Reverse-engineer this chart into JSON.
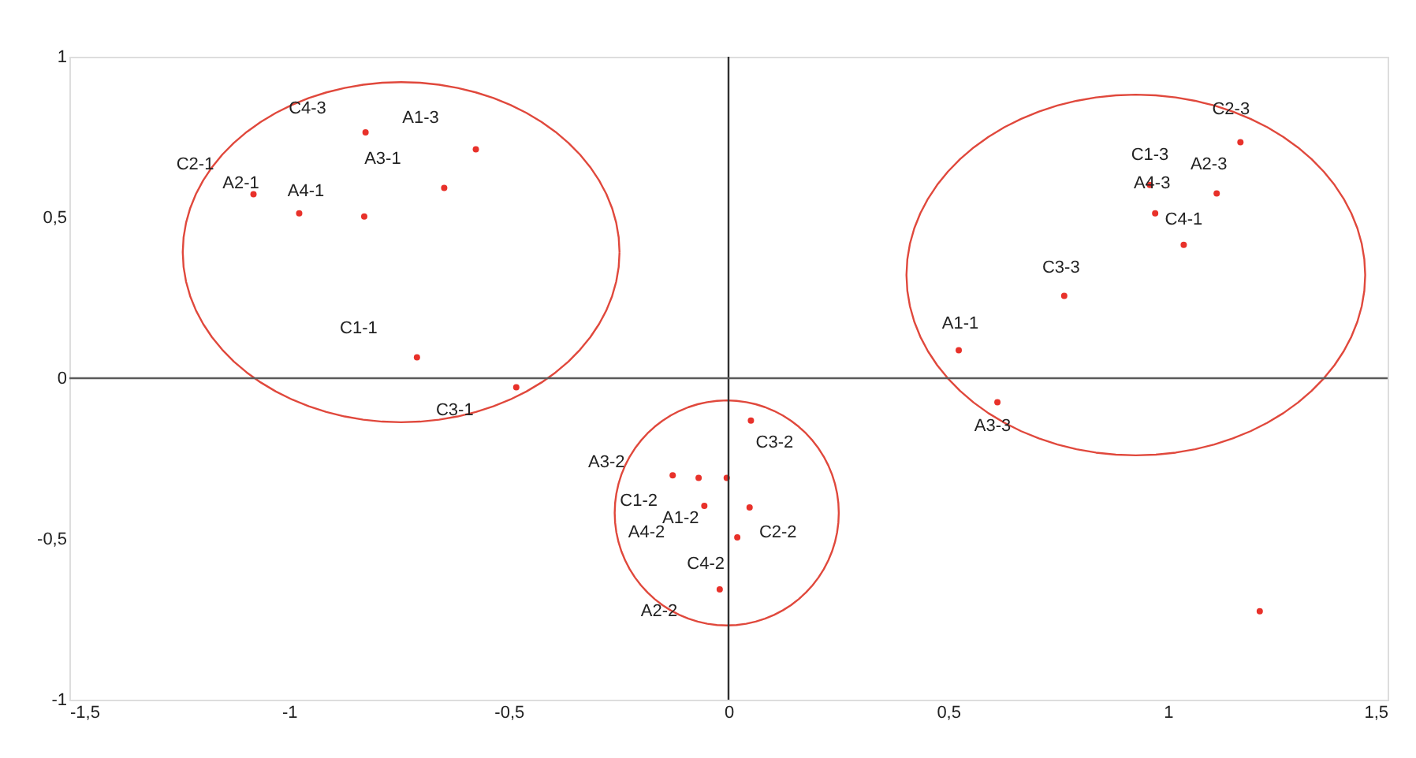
{
  "chart_data": {
    "type": "scatter",
    "xlim": [
      -1.5,
      1.5
    ],
    "ylim": [
      -1,
      1
    ],
    "xticks": [
      {
        "value": -1.5,
        "label": "-1,5"
      },
      -1,
      {
        "value": -0.5,
        "label": "-0,5"
      },
      0,
      {
        "value": 0.5,
        "label": "0,5"
      },
      1,
      {
        "value": 1.5,
        "label": "1,5"
      }
    ],
    "yticks": [
      -1,
      {
        "value": -0.5,
        "label": "-0,5"
      },
      0,
      {
        "value": 0.5,
        "label": "0,5"
      },
      1
    ],
    "grid": false,
    "legend": false,
    "marker": "circle",
    "ref_lines": [
      {
        "axis": "x",
        "value": 0,
        "color": "#303030"
      },
      {
        "axis": "y",
        "value": 0,
        "color": "#5a5a5a"
      }
    ],
    "series": [
      {
        "color": "#e8312a",
        "x": [
          -0.826,
          -0.575,
          -0.647,
          -1.081,
          -0.977,
          -0.829,
          -0.709,
          -0.483,
          1.165,
          1.111,
          0.971,
          0.959,
          1.036,
          0.764,
          0.524,
          0.612,
          0.051,
          -0.127,
          -0.068,
          -0.004,
          -0.055,
          0.048,
          0.02,
          -0.02,
          1.209
        ],
        "values": [
          0.765,
          0.712,
          0.592,
          0.572,
          0.513,
          0.503,
          0.065,
          -0.028,
          0.734,
          0.575,
          0.513,
          0.601,
          0.415,
          0.256,
          0.087,
          -0.075,
          -0.132,
          -0.302,
          -0.31,
          -0.31,
          -0.397,
          -0.402,
          -0.495,
          -0.657,
          -0.725
        ]
      }
    ],
    "annotations": [
      "C4-3",
      {
        "text": "A1-3",
        "x": -0.575,
        "y": 0.712
      },
      {
        "text": "A3-1",
        "x": -0.647,
        "y": 0.592
      },
      {
        "text": "C2-1",
        "x": -1.081,
        "y": 0.572
      },
      {
        "text": "A2-1",
        "x": -0.977,
        "y": 0.513
      },
      {
        "text": "A4-1",
        "x": -0.829,
        "y": 0.503
      },
      {
        "text": "C1-1",
        "x": -0.709,
        "y": 0.065
      },
      {
        "text": "C3-1",
        "x": -0.483,
        "y": -0.028
      },
      {
        "text": "C2-3",
        "x": 1.165,
        "y": 0.734
      },
      {
        "text": "A2-3",
        "x": 1.111,
        "y": 0.575
      },
      {
        "text": "A4-3",
        "x": 0.971,
        "y": 0.513
      },
      {
        "text": "C1-3",
        "x": 0.959,
        "y": 0.601
      },
      {
        "text": "C4-1",
        "x": 1.036,
        "y": 0.415
      },
      {
        "text": "C3-3",
        "x": 0.764,
        "y": 0.256
      },
      {
        "text": "A1-1",
        "x": 0.524,
        "y": 0.087
      },
      {
        "text": "A3-3",
        "x": 0.612,
        "y": -0.075
      },
      {
        "text": "C3-2",
        "x": 0.051,
        "y": -0.132
      },
      {
        "text": "A3-2",
        "x": -0.127,
        "y": -0.302
      },
      {
        "text": "C1-2",
        "x": -0.068,
        "y": -0.31
      },
      "A4-2",
      {
        "text": "A1-2",
        "x": -0.055,
        "y": -0.397
      },
      {
        "text": "C2-2",
        "x": 0.048,
        "y": -0.402
      },
      {
        "text": "C4-2",
        "x": 0.02,
        "y": -0.495
      },
      "A2-2"
    ]
  }
}
